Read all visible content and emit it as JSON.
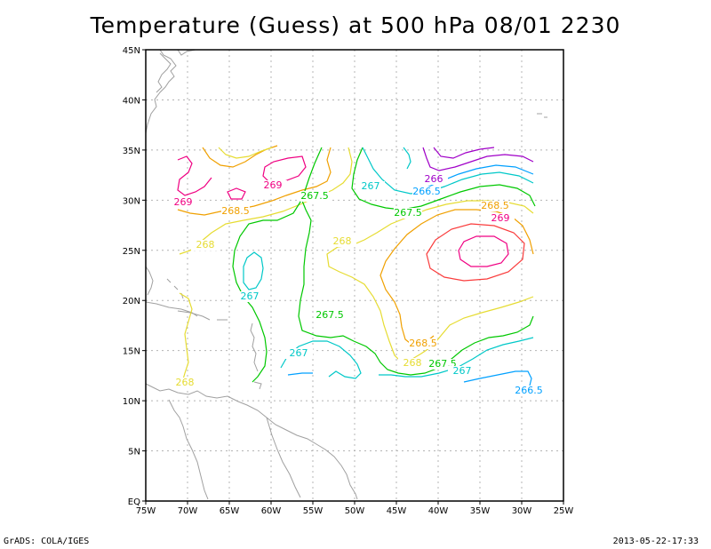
{
  "title": "Temperature (Guess) at 500 hPa 08/01 2230",
  "footer": {
    "left": "GrADS: COLA/IGES",
    "right": "2013-05-22-17:33"
  },
  "axes": {
    "lat_labels": [
      "45N",
      "40N",
      "35N",
      "30N",
      "25N",
      "20N",
      "15N",
      "10N",
      "5N",
      "EQ"
    ],
    "lon_labels": [
      "75W",
      "70W",
      "65W",
      "60W",
      "55W",
      "50W",
      "45W",
      "40W",
      "35W",
      "30W",
      "25W"
    ]
  },
  "colors": {
    "c266": "#a000c8",
    "c266_5": "#00a0ff",
    "c267": "#00c8c8",
    "c267_5": "#00c800",
    "c268": "#e6dc32",
    "c268_5": "#f0a000",
    "c269": "#f00082",
    "c269_alt": "#fa3c3c",
    "coast": "#a0a0a0"
  },
  "contour_labels": [
    {
      "text": "269",
      "color": "#f00082"
    },
    {
      "text": "269",
      "color": "#f00082"
    },
    {
      "text": "269",
      "color": "#f00082"
    },
    {
      "text": "268.5",
      "color": "#f0a000"
    },
    {
      "text": "268.5",
      "color": "#f0a000"
    },
    {
      "text": "268.5",
      "color": "#f0a000"
    },
    {
      "text": "268",
      "color": "#e6dc32"
    },
    {
      "text": "268",
      "color": "#e6dc32"
    },
    {
      "text": "268",
      "color": "#e6dc32"
    },
    {
      "text": "268",
      "color": "#e6dc32"
    },
    {
      "text": "267.5",
      "color": "#00c800"
    },
    {
      "text": "267.5",
      "color": "#00c800"
    },
    {
      "text": "267.5",
      "color": "#00c800"
    },
    {
      "text": "267.5",
      "color": "#00c800"
    },
    {
      "text": "267",
      "color": "#00c8c8"
    },
    {
      "text": "267",
      "color": "#00c8c8"
    },
    {
      "text": "267",
      "color": "#00c8c8"
    },
    {
      "text": "267",
      "color": "#00c8c8"
    },
    {
      "text": "266.5",
      "color": "#00a0ff"
    },
    {
      "text": "266.5",
      "color": "#00a0ff"
    },
    {
      "text": "266",
      "color": "#a000c8"
    }
  ]
}
